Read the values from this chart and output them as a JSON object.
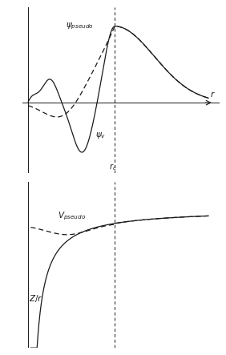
{
  "fig_width": 2.82,
  "fig_height": 4.43,
  "dpi": 100,
  "rc": 0.48,
  "r_start": 0.0,
  "r_max": 1.0,
  "line_color": "#1a1a1a",
  "rc_line_color": "#1a1a1a",
  "label_psi_pseudo": "$\\psi_{pseudo}$",
  "label_psi_v": "$\\psi_v$",
  "label_v_pseudo": "$V_{pseudo}$",
  "label_zr": "$Z/r$",
  "label_rc": "$r_c$",
  "label_r": "$r$",
  "fontsize": 8,
  "label_fontsize": 7.5
}
